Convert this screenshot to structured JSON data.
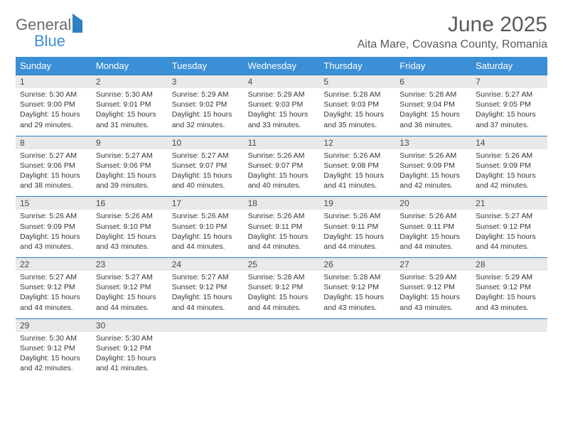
{
  "logo": {
    "text1": "General",
    "text2": "Blue"
  },
  "title": "June 2025",
  "location": "Aita Mare, Covasna County, Romania",
  "colors": {
    "header_bg": "#3b8fd6",
    "header_text": "#ffffff",
    "numrow_bg": "#e9e9e9",
    "numrow_border": "#2f7fc2",
    "body_text": "#363636",
    "title_text": "#5a5a5a"
  },
  "weekdays": [
    "Sunday",
    "Monday",
    "Tuesday",
    "Wednesday",
    "Thursday",
    "Friday",
    "Saturday"
  ],
  "weeks": [
    {
      "nums": [
        "1",
        "2",
        "3",
        "4",
        "5",
        "6",
        "7"
      ],
      "cells": [
        {
          "sunrise": "5:30 AM",
          "sunset": "9:00 PM",
          "dl": "15 hours and 29 minutes."
        },
        {
          "sunrise": "5:30 AM",
          "sunset": "9:01 PM",
          "dl": "15 hours and 31 minutes."
        },
        {
          "sunrise": "5:29 AM",
          "sunset": "9:02 PM",
          "dl": "15 hours and 32 minutes."
        },
        {
          "sunrise": "5:29 AM",
          "sunset": "9:03 PM",
          "dl": "15 hours and 33 minutes."
        },
        {
          "sunrise": "5:28 AM",
          "sunset": "9:03 PM",
          "dl": "15 hours and 35 minutes."
        },
        {
          "sunrise": "5:28 AM",
          "sunset": "9:04 PM",
          "dl": "15 hours and 36 minutes."
        },
        {
          "sunrise": "5:27 AM",
          "sunset": "9:05 PM",
          "dl": "15 hours and 37 minutes."
        }
      ]
    },
    {
      "nums": [
        "8",
        "9",
        "10",
        "11",
        "12",
        "13",
        "14"
      ],
      "cells": [
        {
          "sunrise": "5:27 AM",
          "sunset": "9:06 PM",
          "dl": "15 hours and 38 minutes."
        },
        {
          "sunrise": "5:27 AM",
          "sunset": "9:06 PM",
          "dl": "15 hours and 39 minutes."
        },
        {
          "sunrise": "5:27 AM",
          "sunset": "9:07 PM",
          "dl": "15 hours and 40 minutes."
        },
        {
          "sunrise": "5:26 AM",
          "sunset": "9:07 PM",
          "dl": "15 hours and 40 minutes."
        },
        {
          "sunrise": "5:26 AM",
          "sunset": "9:08 PM",
          "dl": "15 hours and 41 minutes."
        },
        {
          "sunrise": "5:26 AM",
          "sunset": "9:09 PM",
          "dl": "15 hours and 42 minutes."
        },
        {
          "sunrise": "5:26 AM",
          "sunset": "9:09 PM",
          "dl": "15 hours and 42 minutes."
        }
      ]
    },
    {
      "nums": [
        "15",
        "16",
        "17",
        "18",
        "19",
        "20",
        "21"
      ],
      "cells": [
        {
          "sunrise": "5:26 AM",
          "sunset": "9:09 PM",
          "dl": "15 hours and 43 minutes."
        },
        {
          "sunrise": "5:26 AM",
          "sunset": "9:10 PM",
          "dl": "15 hours and 43 minutes."
        },
        {
          "sunrise": "5:26 AM",
          "sunset": "9:10 PM",
          "dl": "15 hours and 44 minutes."
        },
        {
          "sunrise": "5:26 AM",
          "sunset": "9:11 PM",
          "dl": "15 hours and 44 minutes."
        },
        {
          "sunrise": "5:26 AM",
          "sunset": "9:11 PM",
          "dl": "15 hours and 44 minutes."
        },
        {
          "sunrise": "5:26 AM",
          "sunset": "9:11 PM",
          "dl": "15 hours and 44 minutes."
        },
        {
          "sunrise": "5:27 AM",
          "sunset": "9:12 PM",
          "dl": "15 hours and 44 minutes."
        }
      ]
    },
    {
      "nums": [
        "22",
        "23",
        "24",
        "25",
        "26",
        "27",
        "28"
      ],
      "cells": [
        {
          "sunrise": "5:27 AM",
          "sunset": "9:12 PM",
          "dl": "15 hours and 44 minutes."
        },
        {
          "sunrise": "5:27 AM",
          "sunset": "9:12 PM",
          "dl": "15 hours and 44 minutes."
        },
        {
          "sunrise": "5:27 AM",
          "sunset": "9:12 PM",
          "dl": "15 hours and 44 minutes."
        },
        {
          "sunrise": "5:28 AM",
          "sunset": "9:12 PM",
          "dl": "15 hours and 44 minutes."
        },
        {
          "sunrise": "5:28 AM",
          "sunset": "9:12 PM",
          "dl": "15 hours and 43 minutes."
        },
        {
          "sunrise": "5:29 AM",
          "sunset": "9:12 PM",
          "dl": "15 hours and 43 minutes."
        },
        {
          "sunrise": "5:29 AM",
          "sunset": "9:12 PM",
          "dl": "15 hours and 43 minutes."
        }
      ]
    },
    {
      "nums": [
        "29",
        "30",
        "",
        "",
        "",
        "",
        ""
      ],
      "cells": [
        {
          "sunrise": "5:30 AM",
          "sunset": "9:12 PM",
          "dl": "15 hours and 42 minutes."
        },
        {
          "sunrise": "5:30 AM",
          "sunset": "9:12 PM",
          "dl": "15 hours and 41 minutes."
        },
        null,
        null,
        null,
        null,
        null
      ]
    }
  ],
  "labels": {
    "sunrise": "Sunrise:",
    "sunset": "Sunset:",
    "daylight": "Daylight:"
  }
}
